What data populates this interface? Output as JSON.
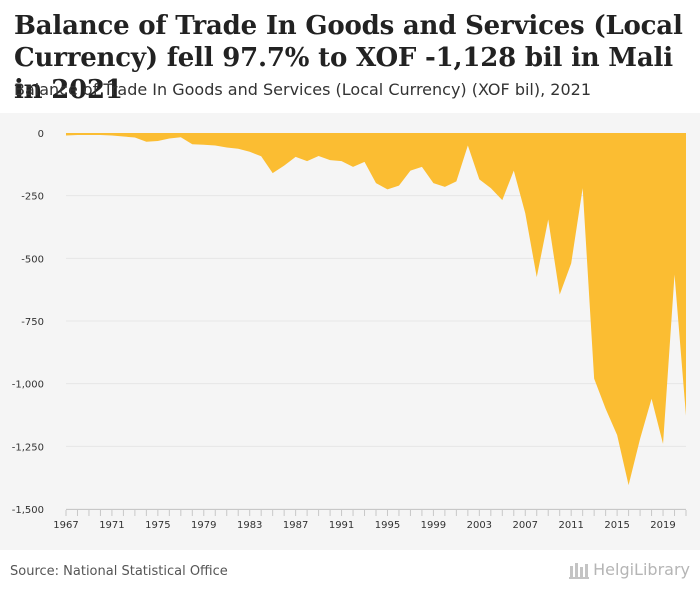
{
  "header": {
    "title": "Balance of Trade In Goods and Services (Local Currency) fell 97.7% to XOF -1,128 bil in Mali in 2021",
    "subtitle": "Balance of Trade In Goods and Services (Local Currency) (XOF bil), 2021"
  },
  "footer": {
    "source": "Source: National Statistical Office",
    "logo_text": "HelgiLibrary"
  },
  "colors": {
    "area": "#fbbd32",
    "plot_background": "#f5f5f5",
    "gridline": "#e6e6e6",
    "axis_text": "#333333"
  },
  "chart_data": {
    "type": "area",
    "x": [
      1967,
      1968,
      1969,
      1970,
      1971,
      1972,
      1973,
      1974,
      1975,
      1976,
      1977,
      1978,
      1979,
      1980,
      1981,
      1982,
      1983,
      1984,
      1985,
      1986,
      1987,
      1988,
      1989,
      1990,
      1991,
      1992,
      1993,
      1994,
      1995,
      1996,
      1997,
      1998,
      1999,
      2000,
      2001,
      2002,
      2003,
      2004,
      2005,
      2006,
      2007,
      2008,
      2009,
      2010,
      2011,
      2012,
      2013,
      2014,
      2015,
      2016,
      2017,
      2018,
      2019,
      2020,
      2021
    ],
    "values": [
      -10,
      -8,
      -8,
      -8,
      -10,
      -14,
      -18,
      -35,
      -32,
      -22,
      -17,
      -45,
      -47,
      -50,
      -58,
      -63,
      -75,
      -93,
      -160,
      -130,
      -95,
      -112,
      -92,
      -108,
      -112,
      -135,
      -115,
      -200,
      -225,
      -210,
      -150,
      -135,
      -200,
      -215,
      -193,
      -50,
      -185,
      -220,
      -268,
      -150,
      -320,
      -575,
      -345,
      -645,
      -520,
      -220,
      -980,
      -1100,
      -1205,
      -1405,
      -1220,
      -1060,
      -1240,
      -565,
      -1128
    ],
    "y_ticks": [
      0,
      -250,
      -500,
      -750,
      -1000,
      -1250,
      -1500
    ],
    "y_tick_labels": [
      "0",
      "-250",
      "-500",
      "-750",
      "-1,000",
      "-1,250",
      "-1,500"
    ],
    "x_tick_labels": [
      "1967",
      "1971",
      "1975",
      "1979",
      "1983",
      "1987",
      "1991",
      "1995",
      "1999",
      "2003",
      "2007",
      "2011",
      "2015",
      "2019"
    ],
    "ylim": [
      -1500,
      0
    ],
    "xlim": [
      1967,
      2021
    ],
    "grid": true,
    "legend": "none"
  }
}
